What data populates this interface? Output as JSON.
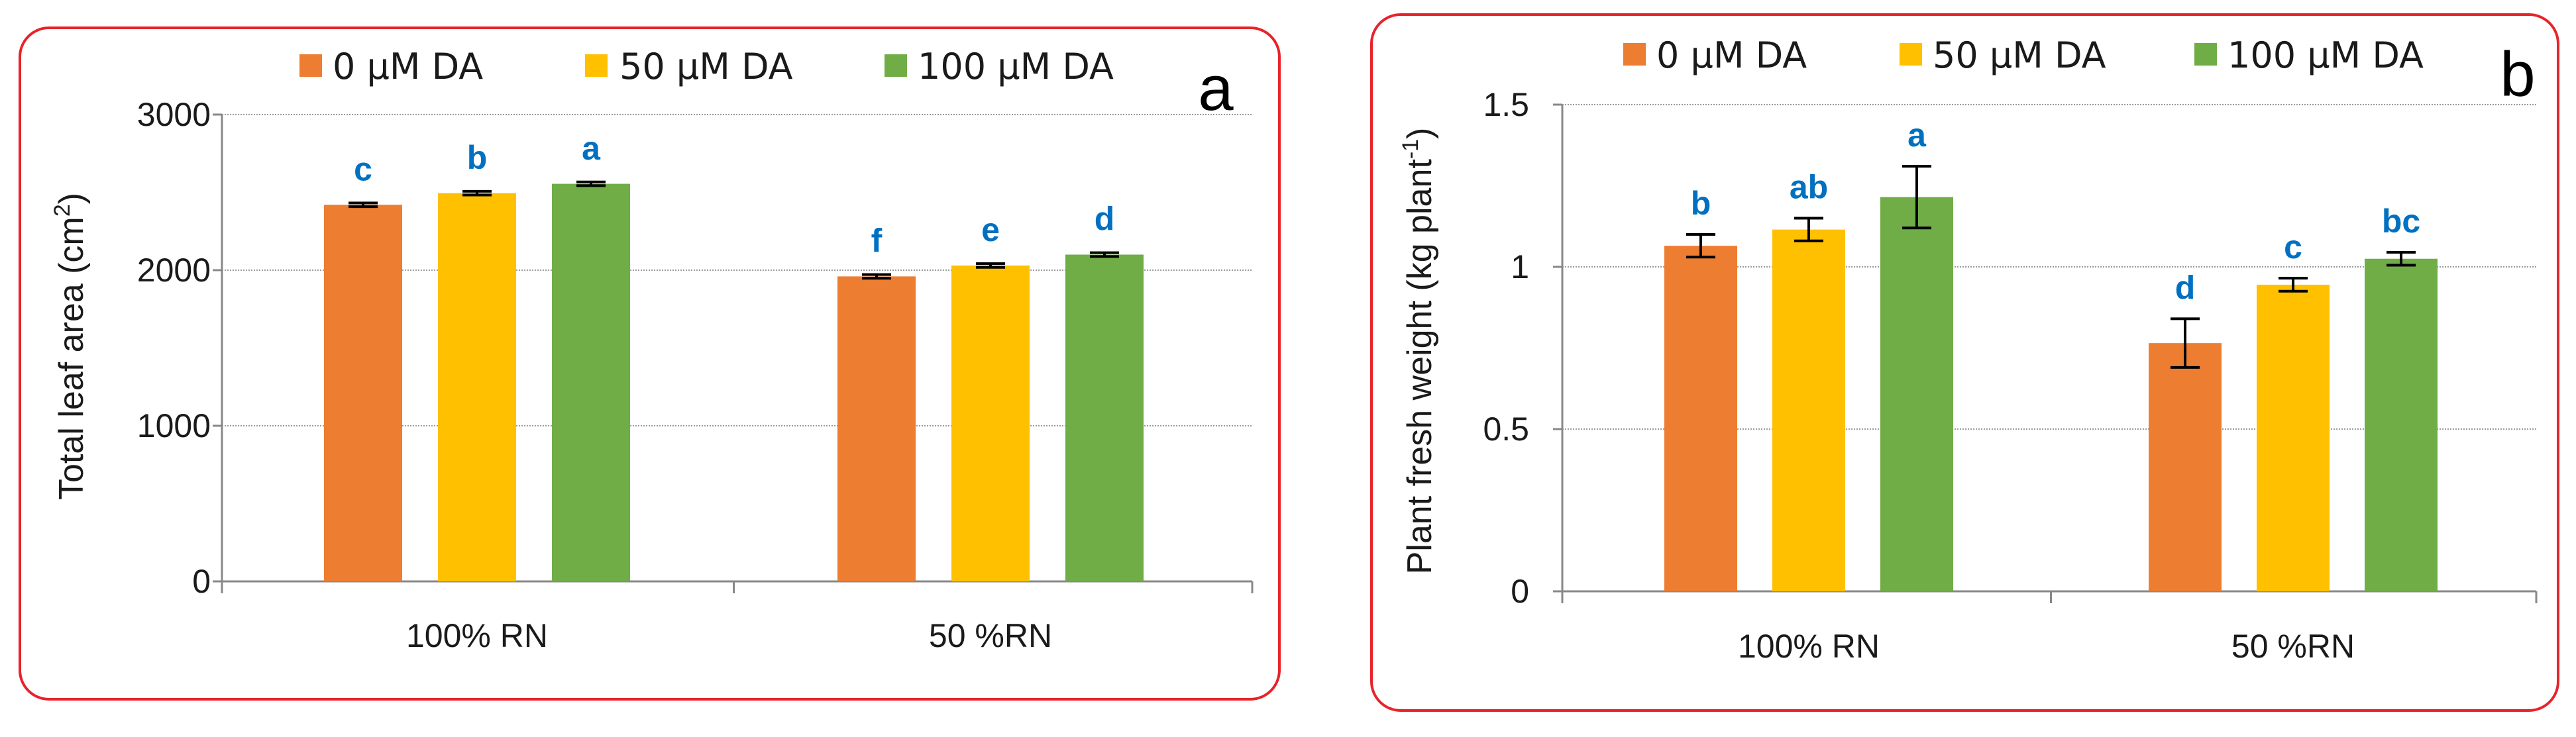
{
  "colors": {
    "series": [
      "#ed7d31",
      "#ffc000",
      "#70ad47"
    ],
    "significance": "#0070c0",
    "border": "#e8232a",
    "grid": "#9a9a9a"
  },
  "chart_data": [
    {
      "type": "bar",
      "panel_label": "a",
      "ylabel": "Total leaf area (cm",
      "ylabel_sup": "2",
      "ylabel_tail": ")",
      "categories": [
        "100% RN",
        "50 %RN"
      ],
      "series": [
        {
          "name": "0 µM DA",
          "values": [
            2420,
            1960
          ],
          "errors": [
            12,
            12
          ],
          "letters": [
            "c",
            "f"
          ]
        },
        {
          "name": "50 µM DA",
          "values": [
            2495,
            2030
          ],
          "errors": [
            12,
            12
          ],
          "letters": [
            "b",
            "e"
          ]
        },
        {
          "name": "100 µM DA",
          "values": [
            2555,
            2100
          ],
          "errors": [
            12,
            12
          ],
          "letters": [
            "a",
            "d"
          ]
        }
      ],
      "ylim": [
        0,
        3000
      ],
      "yticks": [
        "0",
        "1000",
        "2000",
        "3000"
      ],
      "grid": true,
      "legend": "top"
    },
    {
      "type": "bar",
      "panel_label": "b",
      "ylabel": "Plant fresh weight (kg plant",
      "ylabel_sup": "-1",
      "ylabel_tail": ")",
      "categories": [
        "100% RN",
        "50 %RN"
      ],
      "series": [
        {
          "name": "0 µM DA",
          "values": [
            1.065,
            0.765
          ],
          "errors": [
            0.035,
            0.075
          ],
          "letters": [
            "b",
            "d"
          ]
        },
        {
          "name": "50 µM DA",
          "values": [
            1.115,
            0.945
          ],
          "errors": [
            0.035,
            0.02
          ],
          "letters": [
            "ab",
            "c"
          ]
        },
        {
          "name": "100 µM DA",
          "values": [
            1.215,
            1.025
          ],
          "errors": [
            0.095,
            0.02
          ],
          "letters": [
            "a",
            "bc"
          ]
        }
      ],
      "ylim": [
        0,
        1.5
      ],
      "yticks": [
        "0",
        "0.5",
        "1",
        "1.5"
      ],
      "grid": true,
      "legend": "top"
    }
  ]
}
